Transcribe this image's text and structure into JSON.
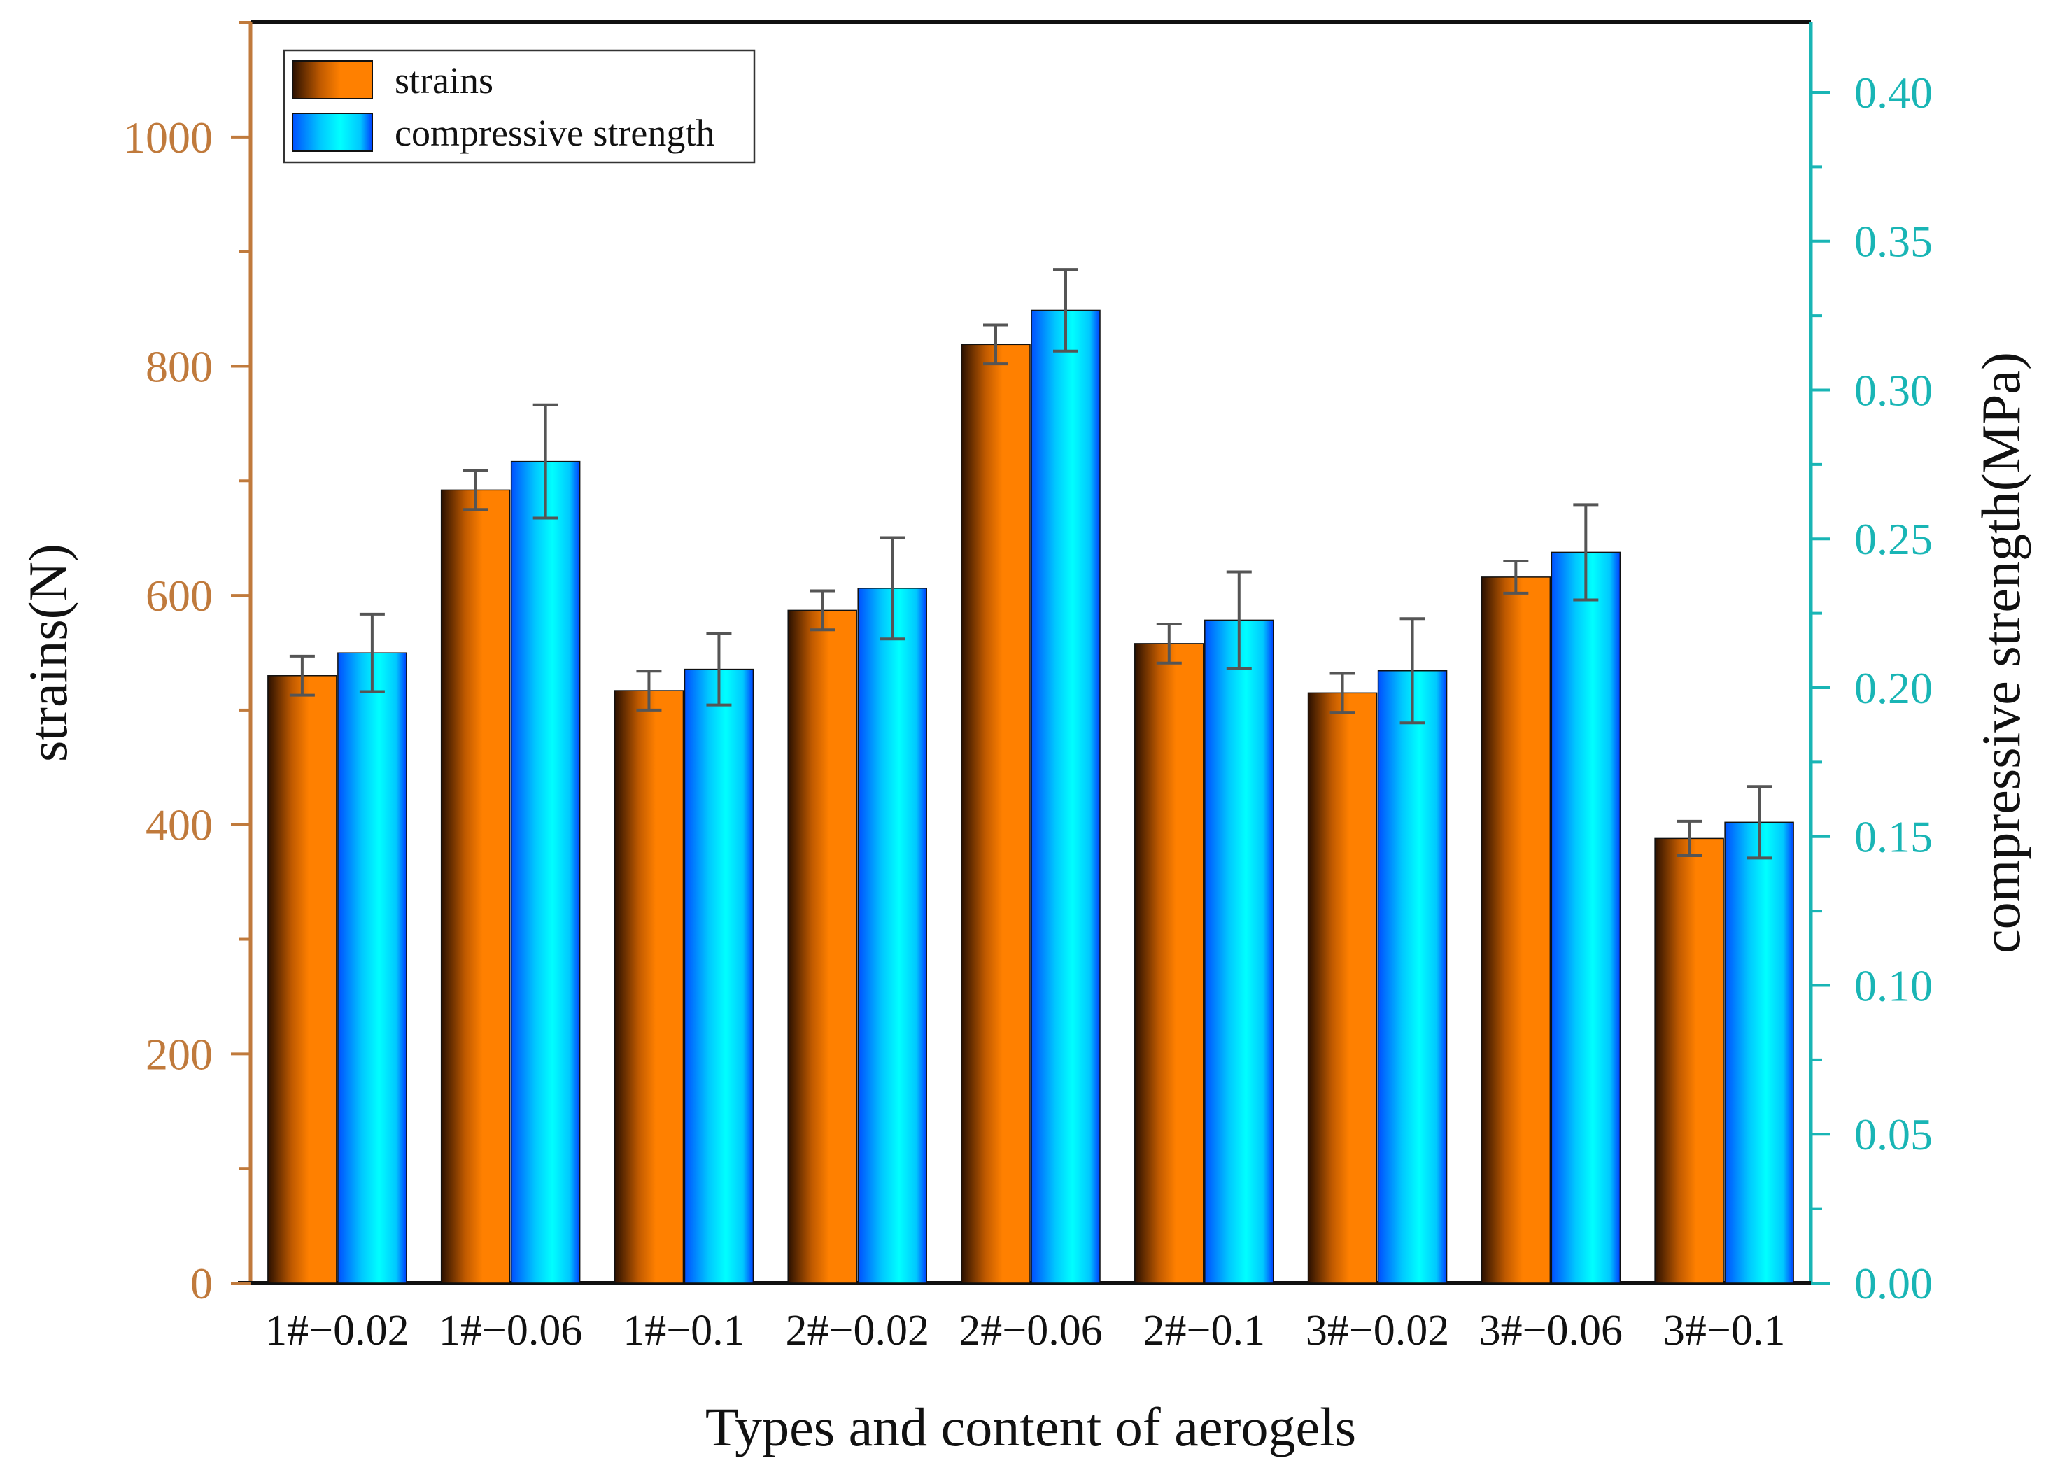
{
  "chart_data": {
    "type": "bar",
    "xlabel": "Types and content of aerogels",
    "ylabel_left": "strains(N)",
    "ylabel_right": "compressive strength(MPa)",
    "categories": [
      "1#−0.02",
      "1#−0.06",
      "1#−0.1",
      "2#−0.02",
      "2#−0.06",
      "2#−0.1",
      "3#−0.02",
      "3#−0.06",
      "3#−0.1"
    ],
    "left_axis": {
      "range": [
        0,
        1100
      ],
      "ticks": [
        0,
        200,
        400,
        600,
        800,
        1000
      ],
      "tick_labels": [
        "0",
        "200",
        "400",
        "600",
        "800",
        "1000"
      ]
    },
    "right_axis": {
      "range": [
        0,
        0.4235
      ],
      "ticks": [
        0.0,
        0.05,
        0.1,
        0.15,
        0.2,
        0.25,
        0.3,
        0.35,
        0.4
      ],
      "tick_labels": [
        "0.00",
        "0.05",
        "0.10",
        "0.15",
        "0.20",
        "0.25",
        "0.30",
        "0.35",
        "0.40"
      ]
    },
    "series": [
      {
        "name": "strains",
        "axis": "left",
        "color": "#ff8000",
        "values": [
          530,
          692,
          517,
          587,
          819,
          558,
          515,
          616,
          388
        ],
        "errors": [
          17,
          17,
          17,
          17,
          17,
          17,
          17,
          14,
          15
        ]
      },
      {
        "name": "compressive strength",
        "axis": "right",
        "color": "#00e5ff",
        "values": [
          0.2117,
          0.276,
          0.2062,
          0.2334,
          0.3268,
          0.2227,
          0.2057,
          0.2455,
          0.1548
        ],
        "errors": [
          0.013,
          0.019,
          0.012,
          0.017,
          0.0137,
          0.0162,
          0.0175,
          0.016,
          0.012
        ]
      }
    ],
    "legend": {
      "position": "top-left",
      "entries": [
        "strains",
        "compressive strength"
      ]
    }
  }
}
